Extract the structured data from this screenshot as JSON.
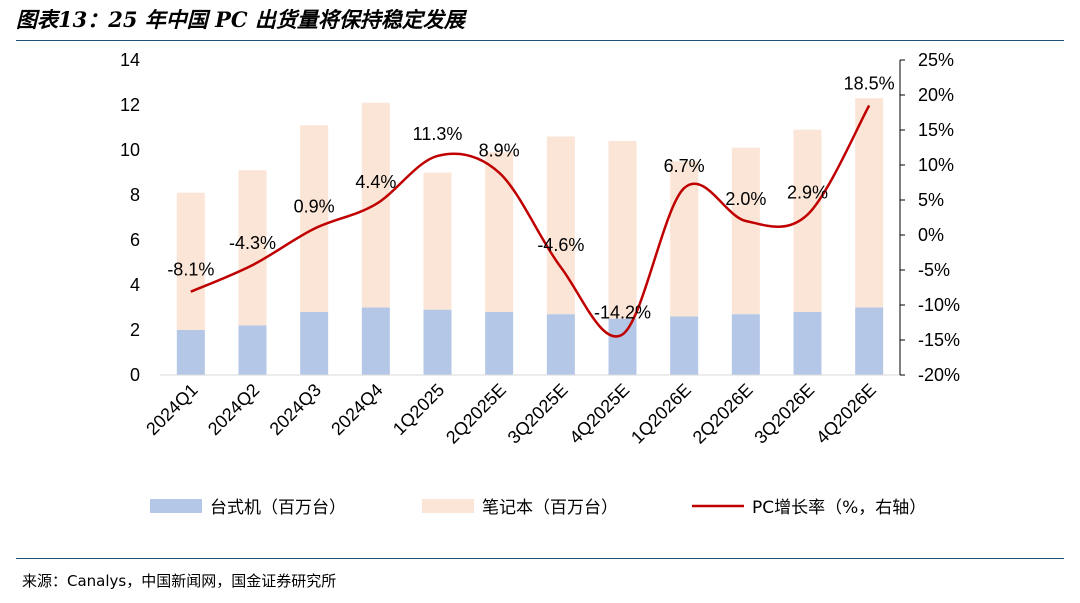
{
  "title": "图表13：25 年中国 PC 出货量将保持稳定发展",
  "source": "来源：Canalys，中国新闻网，国金证券研究所",
  "chart_data": {
    "type": "bar",
    "stacked": true,
    "categories": [
      "2024Q1",
      "2024Q2",
      "2024Q3",
      "2024Q4",
      "1Q2025",
      "2Q2025E",
      "3Q2025E",
      "4Q2025E",
      "1Q2026E",
      "2Q2026E",
      "3Q2026E",
      "4Q2026E"
    ],
    "series": [
      {
        "name": "台式机（百万台）",
        "type": "bar",
        "color": "#b4c7e7",
        "values": [
          2.0,
          2.2,
          2.8,
          3.0,
          2.9,
          2.8,
          2.7,
          2.5,
          2.6,
          2.7,
          2.8,
          3.0
        ]
      },
      {
        "name": "笔记本（百万台）",
        "type": "bar",
        "color": "#fbe5d6",
        "values": [
          6.1,
          6.9,
          8.3,
          9.1,
          6.1,
          7.1,
          7.9,
          7.9,
          6.9,
          7.4,
          8.1,
          9.3
        ]
      },
      {
        "name": "PC增长率（%，右轴）",
        "type": "line",
        "color": "#c00000",
        "axis": "right",
        "values": [
          -8.1,
          -4.3,
          0.9,
          4.4,
          11.3,
          8.9,
          -4.6,
          -14.2,
          6.7,
          2.0,
          2.9,
          18.5
        ]
      }
    ],
    "data_labels": [
      "-8.1%",
      "-4.3%",
      "0.9%",
      "4.4%",
      "11.3%",
      "8.9%",
      "-4.6%",
      "-14.2%",
      "6.7%",
      "2.0%",
      "2.9%",
      "18.5%"
    ],
    "y_left": {
      "min": 0,
      "max": 14,
      "step": 2,
      "ticks": [
        "0",
        "2",
        "4",
        "6",
        "8",
        "10",
        "12",
        "14"
      ]
    },
    "y_right": {
      "min": -20,
      "max": 25,
      "step": 5,
      "ticks": [
        "-20%",
        "-15%",
        "-10%",
        "-5%",
        "0%",
        "5%",
        "10%",
        "15%",
        "20%",
        "25%"
      ]
    },
    "legend_position": "bottom"
  }
}
